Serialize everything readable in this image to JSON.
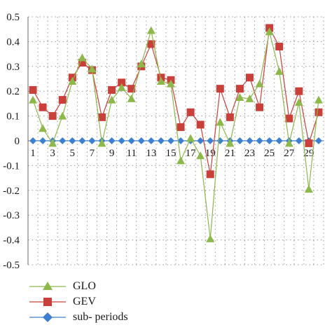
{
  "chart_data": {
    "type": "line",
    "x": [
      1,
      2,
      3,
      4,
      5,
      6,
      7,
      8,
      9,
      10,
      11,
      12,
      13,
      14,
      15,
      16,
      17,
      18,
      19,
      20,
      21,
      22,
      23,
      24,
      25,
      26,
      27,
      28,
      29,
      30
    ],
    "x_tick_labels": [
      "1",
      "3",
      "5",
      "7",
      "9",
      "11",
      "13",
      "15",
      "17",
      "19",
      "21",
      "23",
      "25",
      "27",
      "29"
    ],
    "y_tick_labels": [
      "0.5",
      "0.4",
      "0.3",
      "0.2",
      "0.1",
      "0",
      "-0.1",
      "-0.2",
      "-0.3",
      "-0.4",
      "-0.5"
    ],
    "ylim": [
      -0.5,
      0.5
    ],
    "grid": "dotted horizontal and vertical",
    "legend_placement": "bottom-left",
    "series": [
      {
        "name": "GLO",
        "color": "#8db84a",
        "marker": "triangle",
        "values": [
          0.165,
          0.05,
          -0.01,
          0.1,
          0.24,
          0.335,
          0.29,
          -0.01,
          0.165,
          0.215,
          0.17,
          0.31,
          0.445,
          0.24,
          0.23,
          -0.08,
          0.01,
          -0.06,
          -0.395,
          0.075,
          -0.01,
          0.175,
          0.17,
          0.23,
          0.44,
          0.28,
          -0.01,
          0.155,
          -0.195,
          0.165
        ]
      },
      {
        "name": "GEV",
        "color": "#c9403b",
        "marker": "square",
        "values": [
          0.205,
          0.135,
          0.1,
          0.165,
          0.255,
          0.315,
          0.285,
          0.095,
          0.205,
          0.235,
          0.21,
          0.3,
          0.39,
          0.255,
          0.245,
          0.055,
          0.115,
          0.065,
          -0.135,
          0.21,
          0.095,
          0.21,
          0.255,
          0.135,
          0.455,
          0.38,
          0.09,
          0.2,
          -0.01,
          0.115
        ]
      },
      {
        "name": "sub- periods",
        "color": "#3d7fd1",
        "marker": "diamond",
        "values": [
          0,
          0,
          0,
          0,
          0,
          0,
          0,
          0,
          0,
          0,
          0,
          0,
          0,
          0,
          0,
          0,
          0,
          0,
          0,
          0,
          0,
          0,
          0,
          0,
          0,
          0,
          0,
          0,
          0,
          0
        ]
      }
    ]
  }
}
